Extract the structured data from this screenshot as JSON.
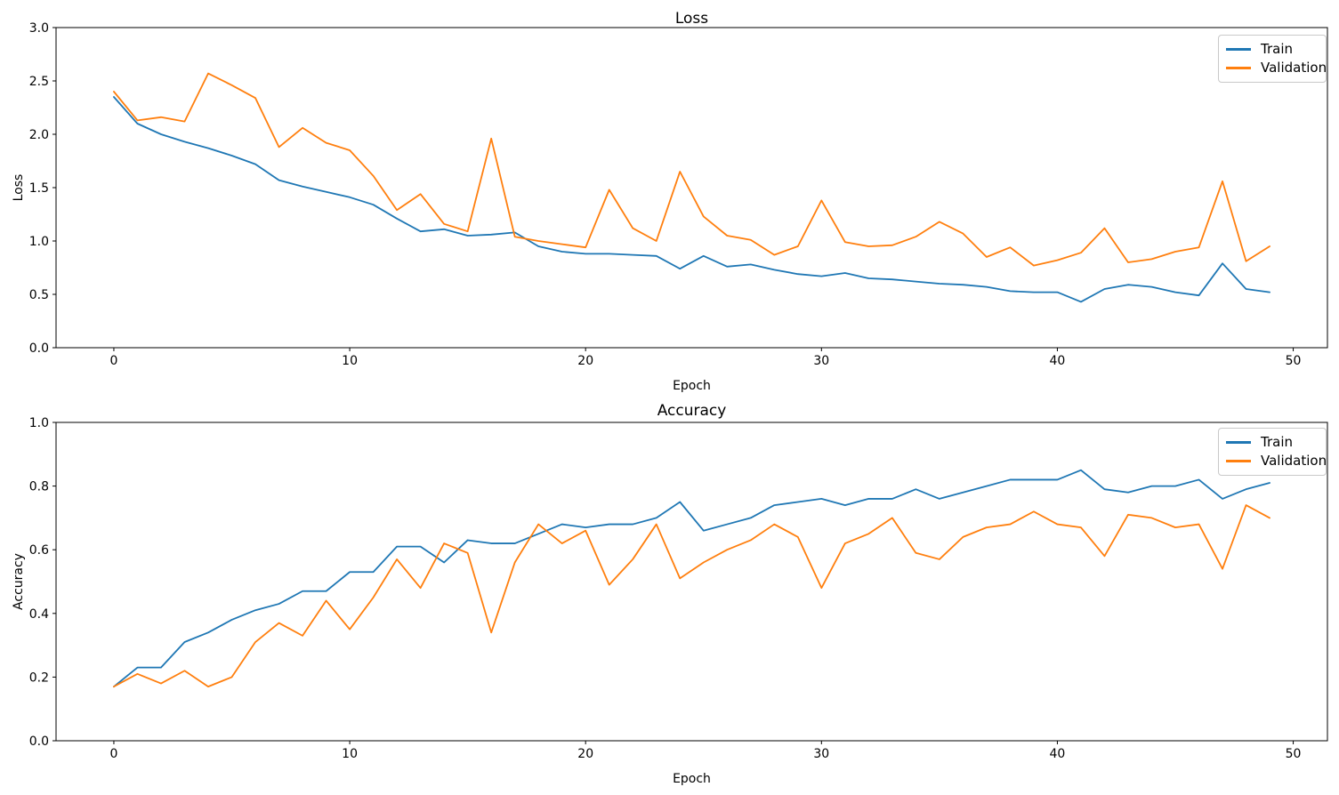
{
  "chart_data": [
    {
      "type": "line",
      "title": "Loss",
      "xlabel": "Epoch",
      "ylabel": "Loss",
      "grid": false,
      "legend_position": "upper right",
      "xlim": [
        -2.45,
        51.45
      ],
      "ylim": [
        0.0,
        3.0
      ],
      "xticks": {
        "values": [
          0,
          10,
          20,
          30,
          40,
          50
        ],
        "labels": [
          "0",
          "10",
          "20",
          "30",
          "40",
          "50"
        ]
      },
      "yticks": {
        "values": [
          0.0,
          0.5,
          1.0,
          1.5,
          2.0,
          2.5,
          3.0
        ],
        "labels": [
          "0.0",
          "0.5",
          "1.0",
          "1.5",
          "2.0",
          "2.5",
          "3.0"
        ]
      },
      "x": [
        0,
        1,
        2,
        3,
        4,
        5,
        6,
        7,
        8,
        9,
        10,
        11,
        12,
        13,
        14,
        15,
        16,
        17,
        18,
        19,
        20,
        21,
        22,
        23,
        24,
        25,
        26,
        27,
        28,
        29,
        30,
        31,
        32,
        33,
        34,
        35,
        36,
        37,
        38,
        39,
        40,
        41,
        42,
        43,
        44,
        45,
        46,
        47,
        48,
        49
      ],
      "series": [
        {
          "name": "Train",
          "color": "#1f77b4",
          "values": [
            2.35,
            2.1,
            2.0,
            1.93,
            1.87,
            1.8,
            1.72,
            1.57,
            1.51,
            1.46,
            1.41,
            1.34,
            1.21,
            1.09,
            1.11,
            1.05,
            1.06,
            1.08,
            0.95,
            0.9,
            0.88,
            0.88,
            0.87,
            0.86,
            0.74,
            0.86,
            0.76,
            0.78,
            0.73,
            0.69,
            0.67,
            0.7,
            0.65,
            0.64,
            0.62,
            0.6,
            0.59,
            0.57,
            0.53,
            0.52,
            0.52,
            0.43,
            0.55,
            0.59,
            0.57,
            0.52,
            0.49,
            0.79,
            0.55,
            0.52
          ]
        },
        {
          "name": "Validation",
          "color": "#ff7f0e",
          "values": [
            2.4,
            2.13,
            2.16,
            2.12,
            2.57,
            2.46,
            2.34,
            1.88,
            2.06,
            1.92,
            1.85,
            1.61,
            1.29,
            1.44,
            1.16,
            1.09,
            1.96,
            1.04,
            1.0,
            0.97,
            0.94,
            1.48,
            1.12,
            1.0,
            1.65,
            1.23,
            1.05,
            1.01,
            0.87,
            0.95,
            1.38,
            0.99,
            0.95,
            0.96,
            1.04,
            1.18,
            1.07,
            0.85,
            0.94,
            0.77,
            0.82,
            0.89,
            1.12,
            0.8,
            0.83,
            0.9,
            0.94,
            1.56,
            0.81,
            0.95
          ]
        }
      ]
    },
    {
      "type": "line",
      "title": "Accuracy",
      "xlabel": "Epoch",
      "ylabel": "Accuracy",
      "grid": false,
      "legend_position": "upper right",
      "xlim": [
        -2.45,
        51.45
      ],
      "ylim": [
        0.0,
        1.0
      ],
      "xticks": {
        "values": [
          0,
          10,
          20,
          30,
          40,
          50
        ],
        "labels": [
          "0",
          "10",
          "20",
          "30",
          "40",
          "50"
        ]
      },
      "yticks": {
        "values": [
          0.0,
          0.2,
          0.4,
          0.6,
          0.8,
          1.0
        ],
        "labels": [
          "0.0",
          "0.2",
          "0.4",
          "0.6",
          "0.8",
          "1.0"
        ]
      },
      "x": [
        0,
        1,
        2,
        3,
        4,
        5,
        6,
        7,
        8,
        9,
        10,
        11,
        12,
        13,
        14,
        15,
        16,
        17,
        18,
        19,
        20,
        21,
        22,
        23,
        24,
        25,
        26,
        27,
        28,
        29,
        30,
        31,
        32,
        33,
        34,
        35,
        36,
        37,
        38,
        39,
        40,
        41,
        42,
        43,
        44,
        45,
        46,
        47,
        48,
        49
      ],
      "series": [
        {
          "name": "Train",
          "color": "#1f77b4",
          "values": [
            0.17,
            0.23,
            0.23,
            0.31,
            0.34,
            0.38,
            0.41,
            0.43,
            0.47,
            0.47,
            0.53,
            0.53,
            0.61,
            0.61,
            0.56,
            0.63,
            0.62,
            0.62,
            0.65,
            0.68,
            0.67,
            0.68,
            0.68,
            0.7,
            0.75,
            0.66,
            0.68,
            0.7,
            0.74,
            0.75,
            0.76,
            0.74,
            0.76,
            0.76,
            0.79,
            0.76,
            0.78,
            0.8,
            0.82,
            0.82,
            0.82,
            0.85,
            0.79,
            0.78,
            0.8,
            0.8,
            0.82,
            0.76,
            0.79,
            0.81
          ]
        },
        {
          "name": "Validation",
          "color": "#ff7f0e",
          "values": [
            0.17,
            0.21,
            0.18,
            0.22,
            0.17,
            0.2,
            0.31,
            0.37,
            0.33,
            0.44,
            0.35,
            0.45,
            0.57,
            0.48,
            0.62,
            0.59,
            0.34,
            0.56,
            0.68,
            0.62,
            0.66,
            0.49,
            0.57,
            0.68,
            0.51,
            0.56,
            0.6,
            0.63,
            0.68,
            0.64,
            0.48,
            0.62,
            0.65,
            0.7,
            0.59,
            0.57,
            0.64,
            0.67,
            0.68,
            0.72,
            0.68,
            0.67,
            0.58,
            0.71,
            0.7,
            0.67,
            0.68,
            0.54,
            0.74,
            0.7
          ]
        }
      ]
    }
  ]
}
